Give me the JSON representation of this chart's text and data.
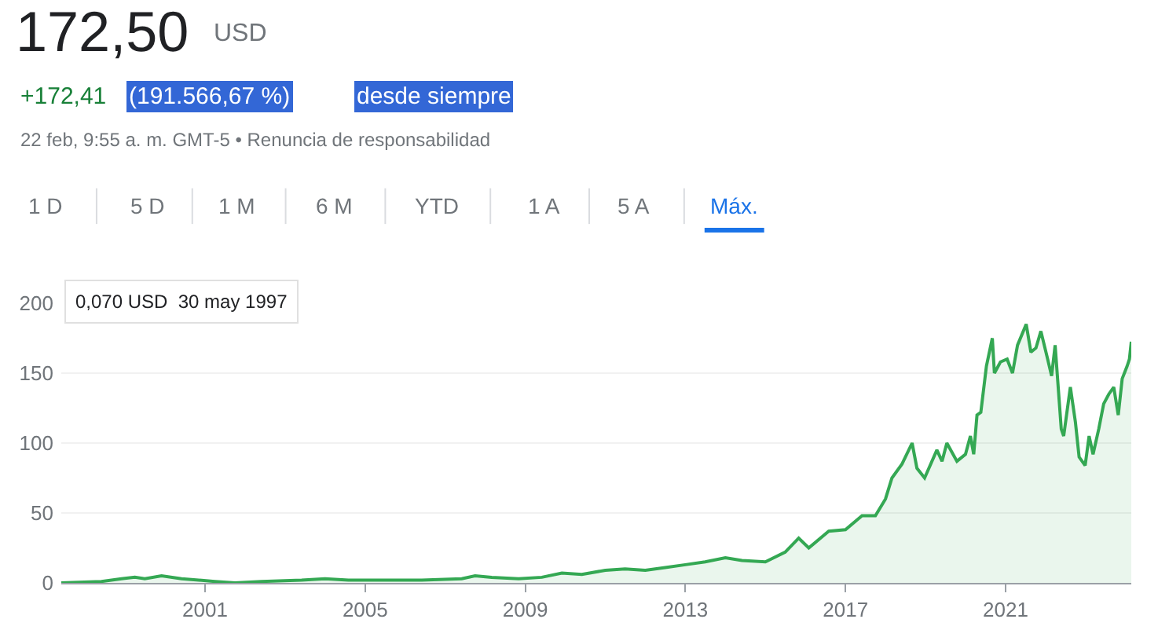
{
  "chart_data": {
    "type": "area",
    "title": "172,50",
    "annotations": [
      "USD",
      "+172,41",
      "(191.566,67 %)",
      "desde siempre",
      "22 feb, 9:55 a. m. GMT-5 • Renuncia de responsabilidad",
      "1 D",
      "5 D",
      "1 M",
      "6 M",
      "YTD",
      "1 A",
      "5 A",
      "Máx.",
      "0,070 USD  30 may 1997"
    ],
    "x": [
      "1997-05-30",
      "1998-06-01",
      "1998-12-01",
      "1999-04-01",
      "1999-07-01",
      "1999-12-01",
      "2000-06-01",
      "2001-04-01",
      "2001-10-01",
      "2002-06-01",
      "2003-06-01",
      "2004-01-01",
      "2004-08-01",
      "2005-06-01",
      "2006-06-01",
      "2007-06-01",
      "2007-10-01",
      "2008-03-01",
      "2008-11-01",
      "2009-06-01",
      "2009-12-01",
      "2010-06-01",
      "2011-01-01",
      "2011-07-01",
      "2012-01-01",
      "2012-07-01",
      "2013-01-01",
      "2013-07-01",
      "2014-01-01",
      "2014-06-01",
      "2015-01-01",
      "2015-07-01",
      "2015-11-01",
      "2016-02-01",
      "2016-08-01",
      "2017-01-01",
      "2017-06-01",
      "2017-10-01",
      "2018-01-01",
      "2018-03-01",
      "2018-06-01",
      "2018-09-01",
      "2018-10-15",
      "2018-12-24",
      "2019-04-15",
      "2019-06-01",
      "2019-07-15",
      "2019-10-15",
      "2020-01-01",
      "2020-02-15",
      "2020-03-16",
      "2020-04-15",
      "2020-05-20",
      "2020-07-10",
      "2020-09-02",
      "2020-09-21",
      "2020-11-15",
      "2021-01-15",
      "2021-03-05",
      "2021-04-20",
      "2021-07-08",
      "2021-08-20",
      "2021-10-05",
      "2021-11-19",
      "2022-01-20",
      "2022-02-25",
      "2022-03-29",
      "2022-05-24",
      "2022-06-15",
      "2022-08-15",
      "2022-09-30",
      "2022-11-03",
      "2022-12-28",
      "2023-02-02",
      "2023-03-10",
      "2023-05-01",
      "2023-06-15",
      "2023-08-01",
      "2023-09-15",
      "2023-10-26",
      "2023-12-01",
      "2024-01-15",
      "2024-02-05",
      "2024-02-22"
    ],
    "series": [
      {
        "color": "#34a853",
        "values": [
          0,
          1,
          3,
          4,
          3,
          5,
          3,
          1,
          0,
          1,
          2,
          3,
          2,
          2,
          2,
          3,
          5,
          4,
          3,
          4,
          7,
          6,
          9,
          10,
          9,
          11,
          13,
          15,
          18,
          16,
          15,
          22.0,
          32.0,
          25.0,
          37.0,
          38.0,
          48.0,
          48.0,
          60.0,
          75.0,
          85.0,
          100.0,
          82.0,
          75.0,
          95.0,
          87.0,
          100.0,
          87.0,
          92.0,
          105.0,
          92.0,
          120.0,
          122.0,
          155.0,
          175.0,
          150.0,
          158.0,
          160.0,
          150.0,
          170.0,
          185.0,
          165.0,
          168.0,
          180.0,
          160.0,
          148.0,
          170.0,
          110.0,
          105.0,
          140.0,
          115.0,
          90.0,
          84.0,
          105.0,
          92.0,
          110.0,
          128.0,
          135.0,
          140.0,
          120.0,
          146.0,
          155.0,
          160.0,
          172.5
        ]
      }
    ],
    "ylim": [
      0,
      200
    ],
    "yticks": [
      0,
      50,
      100,
      150,
      200
    ],
    "xlim": [
      "1997-05-30",
      "2024-02-22"
    ],
    "xticks": [
      {
        "value": "2001-01-01",
        "label": "2001"
      },
      {
        "value": "2005-01-01",
        "label": "2005"
      },
      {
        "value": "2009-01-01",
        "label": "2009"
      },
      {
        "value": "2013-01-01",
        "label": "2013"
      },
      {
        "value": "2017-01-01",
        "label": "2017"
      },
      {
        "value": "2021-01-01",
        "label": "2021"
      }
    ],
    "grid": "y"
  }
}
